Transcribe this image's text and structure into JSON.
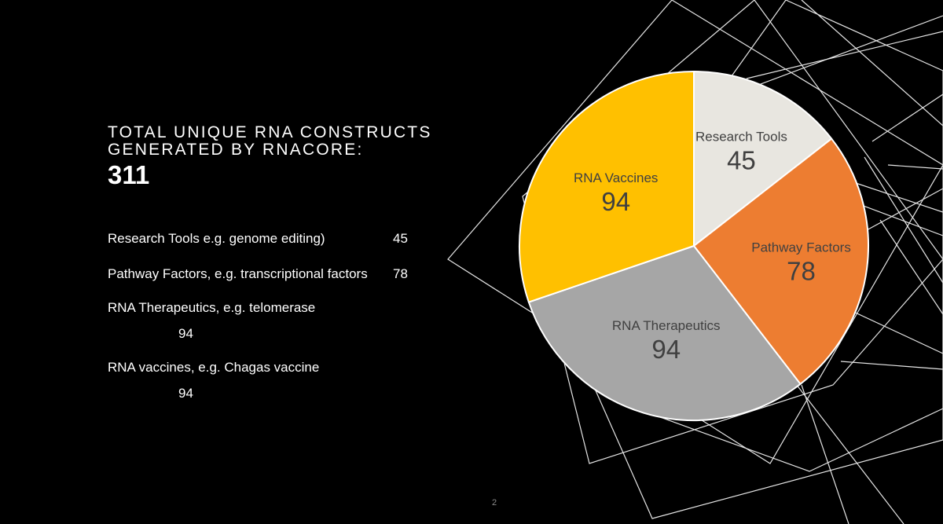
{
  "slide": {
    "heading_line1": "TOTAL UNIQUE RNA CONSTRUCTS",
    "heading_line2": "GENERATED BY RNACORE:",
    "total": "311",
    "page_number": "2"
  },
  "legend": [
    {
      "label": "Research Tools e.g. genome editing)",
      "value": "45"
    },
    {
      "label": "Pathway Factors, e.g. transcriptional factors",
      "value": "78"
    },
    {
      "label": "RNA Therapeutics, e.g. telomerase",
      "value": "94"
    },
    {
      "label": "RNA vaccines, e.g. Chagas vaccine",
      "value": "94"
    }
  ],
  "chart_data": {
    "type": "pie",
    "slices": [
      {
        "label": "Research Tools",
        "value": 45,
        "color": "#E8E6E0"
      },
      {
        "label": "Pathway Factors",
        "value": 78,
        "color": "#ED7D31"
      },
      {
        "label": "RNA Therapeutics",
        "value": 94,
        "color": "#A6A6A6"
      },
      {
        "label": "RNA Vaccines",
        "value": 94,
        "color": "#FFC000"
      }
    ],
    "start_angle_deg": 0,
    "direction": "clockwise"
  }
}
